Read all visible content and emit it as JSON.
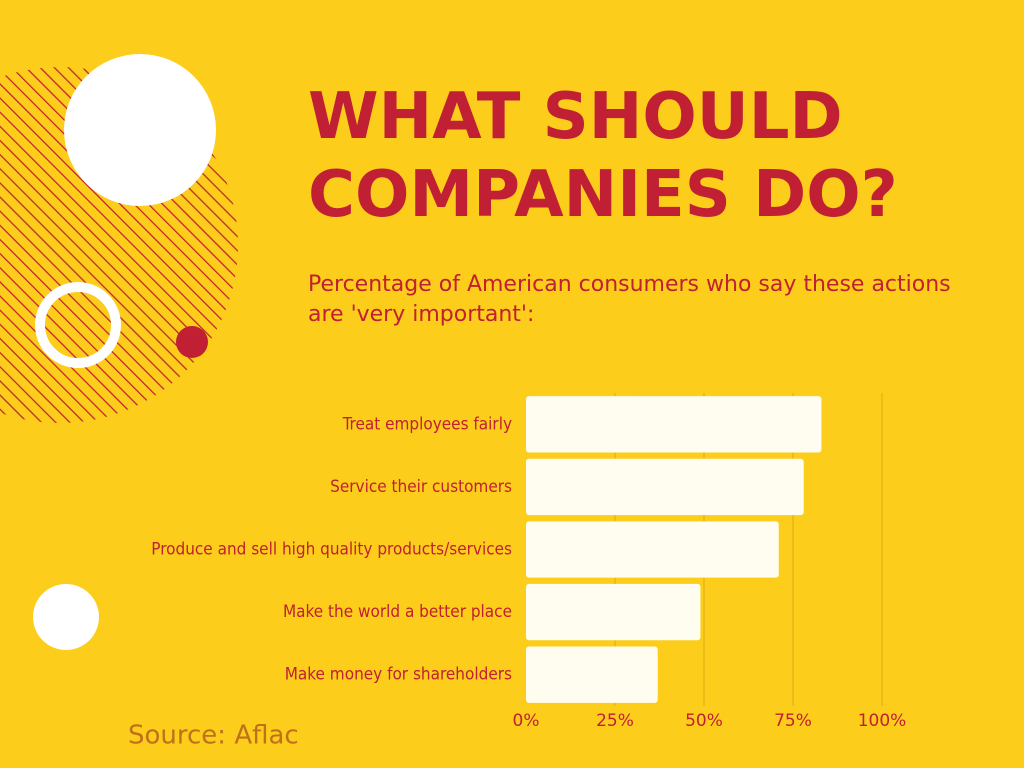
{
  "chart_data": {
    "type": "bar",
    "orientation": "horizontal",
    "title": "WHAT SHOULD COMPANIES DO?",
    "subtitle": "Percentage of American consumers who say these actions are 'very important':",
    "source": "Source: Aflac",
    "categories": [
      "Treat employees fairly",
      "Service their customers",
      "Produce and sell high quality products/services",
      "Make the world a better place",
      "Make money for shareholders"
    ],
    "values": [
      83,
      78,
      71,
      49,
      37
    ],
    "color": "#fffdf0",
    "xlim": [
      0,
      100
    ],
    "xticks": [
      {
        "value": 0,
        "label": "0%"
      },
      {
        "value": 25,
        "label": "25%"
      },
      {
        "value": 50,
        "label": "50%"
      },
      {
        "value": 75,
        "label": "75%"
      },
      {
        "value": 100,
        "label": "100%"
      }
    ],
    "grid": true
  }
}
